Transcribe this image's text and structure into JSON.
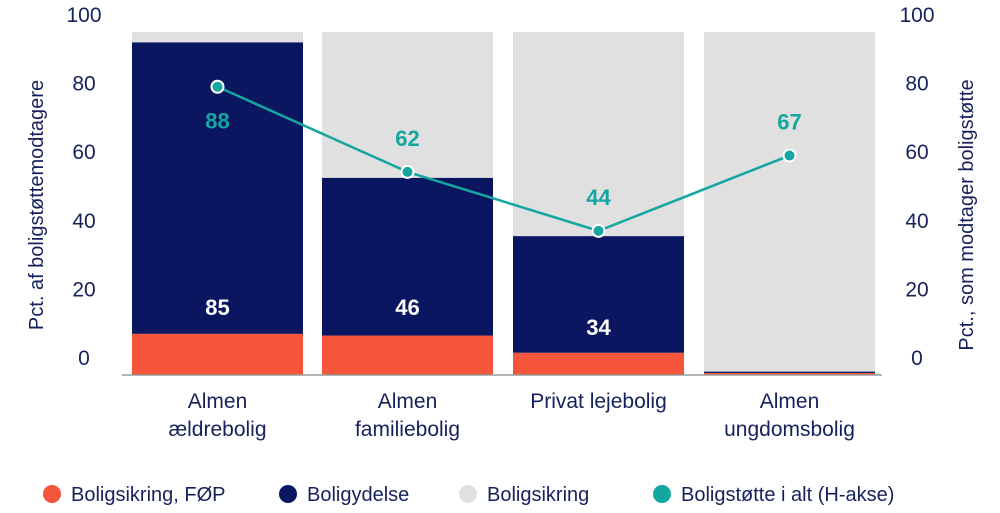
{
  "colors": {
    "fop": "#f4553b",
    "boligydelse": "#0b1660",
    "boligsikring": "#e0e0e0",
    "total_line": "#14a6a0",
    "text": "#16215c",
    "axis_line": "#9a9a9a"
  },
  "chart_data": {
    "type": "bar",
    "stacked": true,
    "categories": [
      [
        "Almen",
        "ældrebolig"
      ],
      [
        "Almen",
        "familiebolig"
      ],
      [
        "Privat lejebolig"
      ],
      [
        "Almen",
        "ungdomsbolig"
      ]
    ],
    "series": [
      {
        "name": "Boligsikring, FØP",
        "values": [
          12,
          11.5,
          6.5,
          0.6
        ],
        "color_key": "fop"
      },
      {
        "name": "Boligydelse",
        "values": [
          85,
          46,
          34,
          0.4
        ],
        "color_key": "boligydelse",
        "data_labels": [
          "85",
          "46",
          "34",
          ""
        ]
      },
      {
        "name": "Boligsikring",
        "values": [
          3,
          42.5,
          59.5,
          99
        ],
        "color_key": "boligsikring"
      },
      {
        "name": "Boligstøtte i alt (H-akse)",
        "type": "line",
        "axis": "right",
        "values": [
          88,
          62,
          44,
          67
        ],
        "color_key": "total_line",
        "data_labels": [
          "88",
          "62",
          "44",
          "67"
        ]
      }
    ],
    "ylabel": "Pct. af boligstøttemodtagere",
    "y2label": "Pct., som modtager boligstøtte",
    "ylim": [
      0,
      100
    ],
    "y2lim": [
      0,
      100
    ],
    "yticks": [
      "0",
      "20",
      "40",
      "60",
      "80",
      "100"
    ],
    "y2ticks": [
      "0",
      "20",
      "40",
      "60",
      "80",
      "100"
    ],
    "legend_position": "bottom",
    "grid": false
  }
}
